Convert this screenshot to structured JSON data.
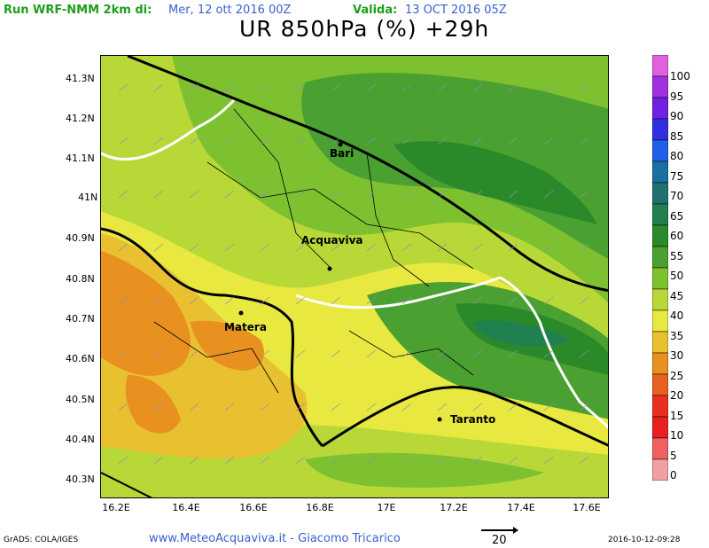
{
  "header": {
    "run_label": "Run WRF-NMM 2km di:",
    "run_date": "Mer, 12 ott 2016 00Z",
    "valid_label": "Valida:",
    "valid_date": "13 OCT 2016 05Z",
    "title": "UR 850hPa (%) +29h"
  },
  "axes": {
    "lat_ticks": [
      "41.3N",
      "41.2N",
      "41.1N",
      "41N",
      "40.9N",
      "40.8N",
      "40.7N",
      "40.6N",
      "40.5N",
      "40.4N",
      "40.3N"
    ],
    "lon_ticks": [
      "16.2E",
      "16.4E",
      "16.6E",
      "16.8E",
      "17E",
      "17.2E",
      "17.4E",
      "17.6E"
    ]
  },
  "cities": [
    {
      "name": "Bari"
    },
    {
      "name": "Acquaviva"
    },
    {
      "name": "Matera"
    },
    {
      "name": "Taranto"
    }
  ],
  "legend": {
    "labels": [
      "100",
      "95",
      "90",
      "85",
      "80",
      "75",
      "70",
      "65",
      "60",
      "55",
      "50",
      "45",
      "40",
      "35",
      "30",
      "25",
      "20",
      "15",
      "10",
      "5",
      "0"
    ],
    "colors": [
      "#e060e0",
      "#a030e0",
      "#7020e0",
      "#3030e0",
      "#2060e8",
      "#1a70a0",
      "#207070",
      "#208050",
      "#2a8a2a",
      "#4aa030",
      "#7dc030",
      "#b8d838",
      "#e8e840",
      "#e8c030",
      "#e89020",
      "#e86020",
      "#e83020",
      "#e82020",
      "#f06060",
      "#f0a0a0",
      "#f8d0d0"
    ]
  },
  "vector_reference": "20",
  "footer": {
    "left": "GrADS: COLA/IGES",
    "middle": "www.MeteoAcquaviva.it - Giacomo Tricarico",
    "right": "2016-10-12-09:28"
  }
}
